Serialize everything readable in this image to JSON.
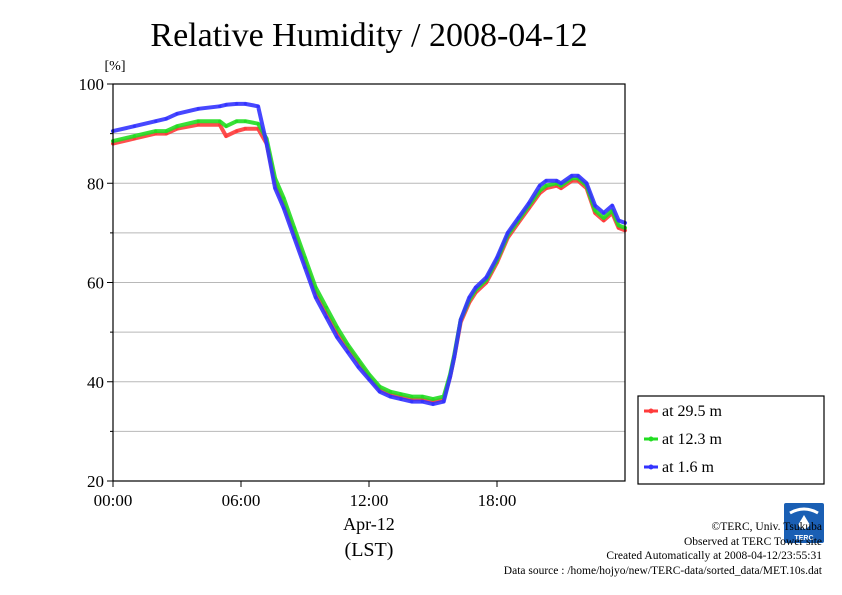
{
  "chart_data": {
    "type": "line",
    "title": "Relative Humidity / 2008-04-12",
    "ylabel": "[%]",
    "xlabel": "Apr-12",
    "xlabel2": "(LST)",
    "ylim": [
      20,
      100
    ],
    "xlim": [
      0,
      24
    ],
    "yticks": [
      20,
      40,
      60,
      80,
      100
    ],
    "xticks": [
      {
        "value": 0,
        "label": "00:00"
      },
      {
        "value": 6,
        "label": "06:00"
      },
      {
        "value": 12,
        "label": "12:00"
      },
      {
        "value": 18,
        "label": "18:00"
      }
    ],
    "grid": "horizontal",
    "legend_position": "bottom-right",
    "series": [
      {
        "name": "at 29.5 m",
        "color": "#ff3b3b",
        "x": [
          0,
          1,
          2,
          2.5,
          3,
          4,
          5,
          5.3,
          5.8,
          6.2,
          6.8,
          7.2,
          7.6,
          8,
          8.5,
          9,
          9.5,
          10,
          10.5,
          11,
          11.5,
          12,
          12.5,
          13,
          13.5,
          14,
          14.5,
          15,
          15.5,
          15.8,
          16,
          16.3,
          16.7,
          17,
          17.5,
          18,
          18.5,
          19,
          19.5,
          20,
          20.3,
          20.8,
          21,
          21.5,
          21.8,
          22.2,
          22.6,
          23,
          23.4,
          23.7,
          24
        ],
        "values": [
          88,
          89,
          90,
          90,
          91,
          91.8,
          91.8,
          89.5,
          90.5,
          91,
          91,
          88,
          80,
          76,
          70,
          64,
          58,
          54,
          50,
          47,
          44,
          41,
          38.5,
          37.5,
          37,
          36.5,
          36.5,
          36,
          36.5,
          41,
          45,
          52,
          56,
          58,
          60,
          64,
          69,
          72,
          75,
          78,
          79,
          79.5,
          79,
          80.5,
          80.5,
          79,
          74,
          72.5,
          74,
          71,
          70.5
        ]
      },
      {
        "name": "at 12.3 m",
        "color": "#22dd22",
        "x": [
          0,
          1,
          2,
          2.5,
          3,
          4,
          5,
          5.3,
          5.8,
          6.2,
          6.8,
          7.2,
          7.6,
          8,
          8.5,
          9,
          9.5,
          10,
          10.5,
          11,
          11.5,
          12,
          12.5,
          13,
          13.5,
          14,
          14.5,
          15,
          15.5,
          15.8,
          16,
          16.3,
          16.7,
          17,
          17.5,
          18,
          18.5,
          19,
          19.5,
          20,
          20.3,
          20.8,
          21,
          21.5,
          21.8,
          22.2,
          22.6,
          23,
          23.4,
          23.7,
          24
        ],
        "values": [
          88.5,
          89.5,
          90.5,
          90.5,
          91.5,
          92.5,
          92.5,
          91.5,
          92.5,
          92.5,
          92,
          89,
          81,
          77,
          71,
          65,
          59,
          55,
          51,
          47.5,
          44.5,
          41.5,
          39,
          38,
          37.5,
          37,
          37,
          36.5,
          37,
          41.5,
          45.5,
          52.5,
          56.5,
          58.5,
          60.5,
          64.5,
          69.5,
          72.5,
          75.5,
          78.5,
          79.5,
          80,
          79.5,
          81,
          81,
          79.5,
          74.5,
          73,
          74.5,
          71.5,
          71
        ]
      },
      {
        "name": "at 1.6 m",
        "color": "#3333ff",
        "x": [
          0,
          1,
          2,
          2.5,
          3,
          4,
          5,
          5.3,
          5.8,
          6.2,
          6.8,
          7.2,
          7.6,
          8,
          8.5,
          9,
          9.5,
          10,
          10.5,
          11,
          11.5,
          12,
          12.5,
          13,
          13.5,
          14,
          14.5,
          15,
          15.5,
          15.8,
          16,
          16.3,
          16.7,
          17,
          17.5,
          18,
          18.5,
          19,
          19.5,
          20,
          20.3,
          20.8,
          21,
          21.5,
          21.8,
          22.2,
          22.6,
          23,
          23.4,
          23.7,
          24
        ],
        "values": [
          90.5,
          91.5,
          92.5,
          93,
          94,
          95,
          95.5,
          95.8,
          96,
          96,
          95.5,
          88,
          79,
          75,
          69,
          63,
          57,
          53,
          49,
          46,
          43,
          40.5,
          38,
          37,
          36.5,
          36,
          36,
          35.5,
          36,
          41,
          45,
          52.5,
          57,
          59,
          61,
          65,
          70,
          73,
          76,
          79.5,
          80.5,
          80.5,
          80,
          81.5,
          81.5,
          80,
          75.5,
          74,
          75.5,
          72.5,
          72
        ]
      }
    ]
  },
  "footer": {
    "copyright": "©TERC, Univ. Tsukuba",
    "observed": "Observed at TERC Tower site",
    "created": "Created Automatically at 2008-04-12/23:55:31",
    "source": "Data source : /home/hojyo/new/TERC-data/sorted_data/MET.10s.dat"
  },
  "logo": {
    "text": "TERC",
    "color": "#1a5fb4"
  }
}
